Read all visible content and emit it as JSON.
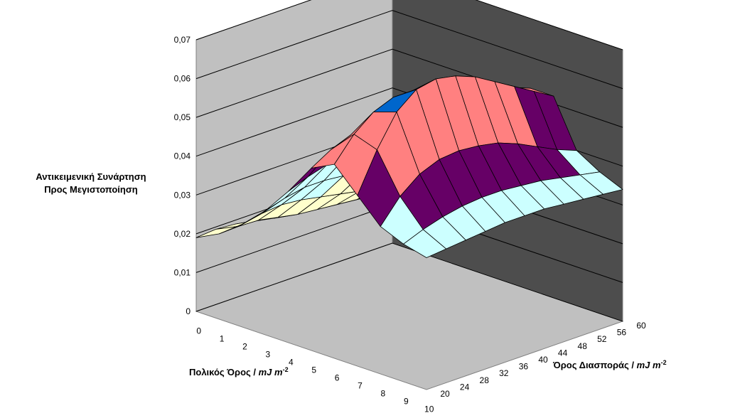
{
  "chart_data": {
    "type": "surface",
    "title": "",
    "zlabel_line1": "Αντικειμενική Συνάρτηση",
    "zlabel_line2": "Προς Μεγιστοποίηση",
    "xlabel": "Πολικός Όρος",
    "xlabel_unit": "mJ m",
    "ylabel": "Όρος Διασποράς",
    "ylabel_unit": "mJ m",
    "unit_exponent": "-2",
    "zlim": [
      0,
      0.07
    ],
    "z_ticks": [
      "0",
      "0,01",
      "0,02",
      "0,03",
      "0,04",
      "0,05",
      "0,06",
      "0,07"
    ],
    "x_ticks": [
      "0",
      "1",
      "2",
      "3",
      "4",
      "5",
      "6",
      "7",
      "8",
      "9",
      "10"
    ],
    "y_ticks": [
      "20",
      "24",
      "28",
      "32",
      "36",
      "40",
      "44",
      "48",
      "52",
      "56",
      "60"
    ],
    "band_colors": [
      "#ffffcc",
      "#ccffff",
      "#660066",
      "#ff8080",
      "#0066cc"
    ],
    "band_thresholds": [
      0.03,
      0.04,
      0.05,
      0.06
    ],
    "surface": {
      "note": "rows follow Πολικός Όρος 0..10, columns follow Όρος Διασποράς 20..60",
      "z": [
        [
          0.019,
          0.0194,
          0.019,
          0.018,
          0.017,
          0.0165,
          0.0162,
          0.016,
          0.0158,
          0.0157,
          0.0157
        ],
        [
          0.022,
          0.0222,
          0.022,
          0.021,
          0.02,
          0.0195,
          0.019,
          0.0185,
          0.018,
          0.018,
          0.018
        ],
        [
          0.0265,
          0.0275,
          0.028,
          0.0275,
          0.0265,
          0.0255,
          0.0245,
          0.0235,
          0.0225,
          0.022,
          0.022
        ],
        [
          0.032,
          0.0335,
          0.0345,
          0.0345,
          0.034,
          0.033,
          0.032,
          0.031,
          0.03,
          0.0295,
          0.029
        ],
        [
          0.039,
          0.041,
          0.0425,
          0.043,
          0.043,
          0.0425,
          0.0415,
          0.0405,
          0.0395,
          0.0385,
          0.038
        ],
        [
          0.047,
          0.05,
          0.052,
          0.053,
          0.053,
          0.0525,
          0.0515,
          0.0505,
          0.0495,
          0.0485,
          0.0475
        ],
        [
          0.05,
          0.056,
          0.06,
          0.062,
          0.062,
          0.061,
          0.0595,
          0.058,
          0.056,
          0.054,
          0.052
        ],
        [
          0.044,
          0.054,
          0.062,
          0.066,
          0.067,
          0.066,
          0.064,
          0.061,
          0.058,
          0.055,
          0.052
        ],
        [
          0.038,
          0.044,
          0.048,
          0.05,
          0.0505,
          0.05,
          0.049,
          0.047,
          0.0445,
          0.042,
          0.04
        ],
        [
          0.0355,
          0.0375,
          0.039,
          0.04,
          0.0405,
          0.0405,
          0.04,
          0.0395,
          0.0385,
          0.0375,
          0.0365
        ],
        [
          0.034,
          0.0345,
          0.035,
          0.0355,
          0.036,
          0.036,
          0.036,
          0.0355,
          0.035,
          0.0345,
          0.034
        ]
      ]
    }
  }
}
